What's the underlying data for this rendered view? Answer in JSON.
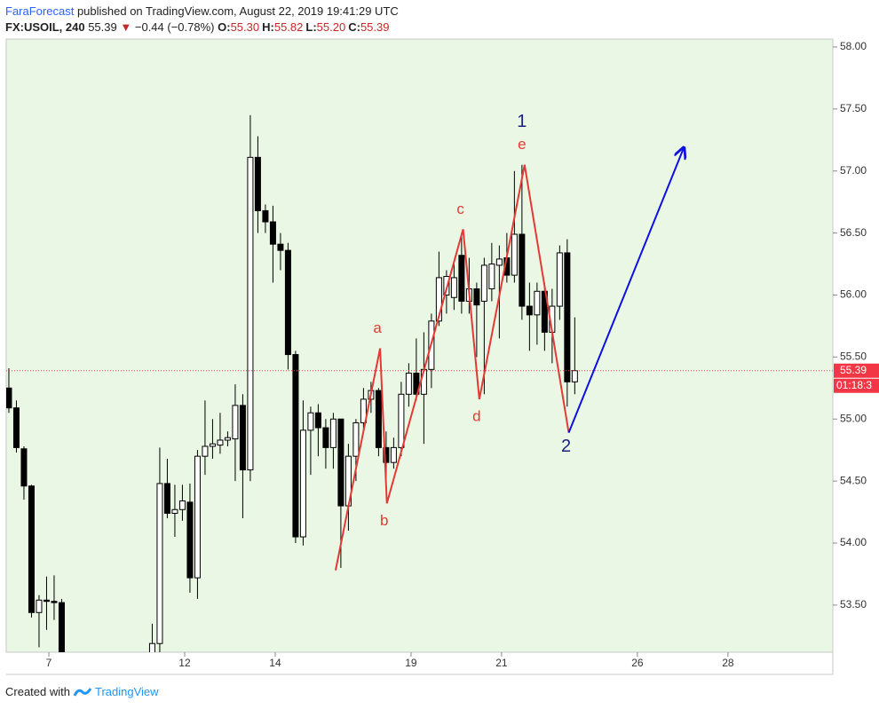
{
  "header": {
    "author": "FaraForecast",
    "published": "published on TradingView.com, August 22, 2019 19:41:29 UTC",
    "symbol": "FX:USOIL, 240",
    "last": "55.39",
    "arrow": "▼",
    "change": "−0.44 (−0.78%)",
    "ohlc": [
      [
        "O:",
        "55.30"
      ],
      [
        "H:",
        "55.82"
      ],
      [
        "L:",
        "55.20"
      ],
      [
        "C:",
        "55.39"
      ]
    ]
  },
  "footer": {
    "created": "Created with",
    "brand": "TradingView"
  },
  "chart_data": {
    "type": "candlestick",
    "background": "#e9f7e4",
    "up_color": "#ffffff",
    "down_color": "#000000",
    "x": [
      0,
      1,
      2,
      3,
      4,
      5,
      6,
      7,
      19,
      20,
      21,
      22,
      23,
      24,
      25,
      26,
      27,
      28,
      29,
      30,
      31,
      32,
      33,
      34,
      35,
      36,
      37,
      38,
      39,
      40,
      41,
      42,
      43,
      44,
      45,
      46,
      47,
      48,
      49,
      50,
      51,
      52,
      53,
      54,
      55,
      56,
      57,
      58,
      59,
      60,
      61,
      62,
      63,
      64,
      65,
      66,
      67,
      68,
      69,
      70,
      71,
      72,
      73,
      74,
      75
    ],
    "open": [
      55.25,
      55.09,
      54.76,
      54.46,
      53.44,
      53.54,
      53.53,
      53.52,
      53.0,
      53.19,
      54.48,
      54.24,
      54.27,
      54.33,
      53.72,
      54.7,
      54.78,
      54.79,
      54.83,
      54.84,
      55.11,
      54.59,
      57.11,
      56.68,
      56.59,
      56.41,
      56.36,
      55.52,
      54.05,
      54.91,
      55.05,
      54.93,
      54.77,
      55.0,
      54.3,
      54.7,
      54.97,
      55.16,
      55.23,
      54.77,
      54.65,
      54.77,
      55.2,
      55.37,
      55.2,
      55.4,
      55.79,
      56.0,
      55.98,
      56.32,
      55.95,
      56.05,
      55.95,
      56.05,
      56.24,
      56.3,
      56.16,
      56.49,
      55.91,
      55.84,
      56.03,
      55.7,
      55.91,
      56.34,
      55.3
    ],
    "high": [
      55.41,
      55.15,
      54.78,
      54.47,
      53.58,
      53.73,
      53.74,
      53.55,
      53.35,
      54.77,
      54.68,
      54.47,
      54.47,
      54.48,
      54.75,
      55.15,
      55.0,
      55.05,
      54.9,
      55.28,
      55.2,
      57.45,
      57.28,
      56.73,
      56.72,
      56.5,
      56.42,
      55.55,
      55.15,
      55.1,
      55.12,
      55.0,
      55.05,
      55.0,
      54.8,
      55.0,
      55.25,
      55.3,
      55.25,
      54.9,
      54.85,
      55.3,
      55.45,
      55.65,
      55.7,
      55.85,
      56.35,
      56.2,
      56.25,
      56.5,
      56.3,
      56.1,
      56.3,
      56.42,
      56.4,
      56.5,
      57.0,
      57.05,
      56.1,
      56.1,
      56.1,
      56.05,
      56.4,
      56.45,
      55.82
    ],
    "low": [
      55.05,
      54.73,
      54.35,
      53.4,
      53.16,
      53.3,
      53.38,
      52.9,
      52.9,
      53.1,
      54.2,
      54.05,
      54.18,
      53.6,
      53.55,
      54.55,
      54.68,
      54.72,
      54.78,
      54.5,
      54.2,
      54.5,
      56.5,
      56.5,
      56.1,
      56.2,
      55.4,
      54.0,
      53.98,
      54.55,
      54.7,
      54.6,
      54.6,
      53.8,
      54.1,
      54.5,
      54.9,
      55.05,
      54.7,
      54.5,
      54.6,
      54.7,
      55.1,
      55.15,
      54.8,
      55.25,
      55.75,
      55.85,
      55.88,
      55.85,
      55.85,
      55.5,
      55.2,
      55.95,
      55.65,
      56.1,
      56.1,
      55.8,
      55.55,
      55.6,
      55.55,
      55.45,
      55.8,
      55.1,
      55.2
    ],
    "close": [
      55.09,
      54.77,
      54.46,
      53.44,
      53.54,
      53.53,
      53.52,
      53.0,
      53.19,
      54.48,
      54.24,
      54.27,
      54.34,
      53.72,
      54.7,
      54.78,
      54.8,
      54.83,
      54.85,
      55.11,
      54.59,
      57.11,
      56.68,
      56.59,
      56.41,
      56.36,
      55.52,
      54.05,
      54.91,
      55.05,
      54.93,
      54.77,
      55.0,
      54.3,
      54.7,
      54.97,
      55.16,
      55.23,
      54.77,
      54.65,
      54.77,
      55.2,
      55.37,
      55.2,
      55.4,
      55.79,
      56.14,
      56.15,
      56.14,
      55.95,
      56.05,
      55.92,
      56.24,
      56.25,
      56.29,
      56.16,
      56.49,
      55.91,
      55.84,
      56.03,
      55.7,
      55.91,
      56.34,
      55.3,
      55.39
    ],
    "xlim": [
      -0.35,
      109.2
    ],
    "xticks": [
      {
        "value": 5.3,
        "label": "7"
      },
      {
        "value": 23.3,
        "label": "12"
      },
      {
        "value": 35.3,
        "label": "14"
      },
      {
        "value": 53.3,
        "label": "19"
      },
      {
        "value": 65.3,
        "label": "21"
      },
      {
        "value": 83.3,
        "label": "26"
      },
      {
        "value": 95.3,
        "label": "28"
      }
    ],
    "ylim": [
      53.12,
      58.064
    ],
    "yticks": [
      {
        "value": 53.5,
        "label": "53.50"
      },
      {
        "value": 54,
        "label": "54.00"
      },
      {
        "value": 54.5,
        "label": "54.50"
      },
      {
        "value": 55,
        "label": "55.00"
      },
      {
        "value": 55.5,
        "label": "55.50"
      },
      {
        "value": 56,
        "label": "56.00"
      },
      {
        "value": 56.5,
        "label": "56.50"
      },
      {
        "value": 57,
        "label": "57.00"
      },
      {
        "value": 57.5,
        "label": "57.50"
      },
      {
        "value": 58,
        "label": "58.00"
      }
    ],
    "last_price": 55.39,
    "last_color": "#f23645",
    "countdown": "01:18:3",
    "waves": [
      {
        "color": "#e53935",
        "x": [
          43.3,
          49.2,
          50.1,
          60.2,
          62.35,
          68.35,
          74.2
        ],
        "y": [
          53.78,
          55.57,
          54.32,
          56.53,
          55.16,
          57.05,
          54.89
        ],
        "labels": [
          null,
          "a",
          "b",
          "c",
          "d",
          "e",
          null
        ]
      },
      {
        "color": "#1a237e",
        "line": false,
        "x": [
          68.35,
          74.2
        ],
        "y": [
          57.05,
          54.89
        ],
        "labels": [
          "1",
          "2"
        ]
      },
      {
        "color": "#1010e0",
        "arrow": true,
        "x": [
          74.2,
          89.4
        ],
        "y": [
          54.89,
          57.18
        ]
      }
    ]
  }
}
